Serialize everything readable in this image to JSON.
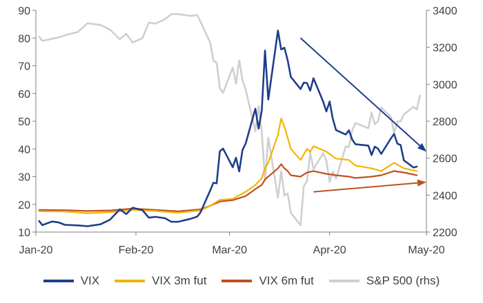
{
  "chart_data": {
    "type": "line",
    "title": "",
    "x_ticks": [
      "Jan-20",
      "Feb-20",
      "Mar-20",
      "Apr-20",
      "May-20"
    ],
    "x_range": [
      "2020-01-01",
      "2020-05-01"
    ],
    "y_left": {
      "min": 10,
      "max": 90,
      "ticks": [
        10,
        20,
        30,
        40,
        50,
        60,
        70,
        80,
        90
      ]
    },
    "y_right": {
      "label": "rhs",
      "min": 2200,
      "max": 3400,
      "ticks": [
        2200,
        2400,
        2600,
        2800,
        3000,
        3200,
        3400
      ]
    },
    "grid": false,
    "legend_position": "bottom",
    "series": [
      {
        "name": "VIX",
        "axis": "left",
        "color": "#1F3D8C",
        "points": [
          [
            "2020-01-02",
            14
          ],
          [
            "2020-01-03",
            12.5
          ],
          [
            "2020-01-06",
            13.8
          ],
          [
            "2020-01-08",
            13.5
          ],
          [
            "2020-01-10",
            12.6
          ],
          [
            "2020-01-14",
            12.4
          ],
          [
            "2020-01-17",
            12.1
          ],
          [
            "2020-01-21",
            12.8
          ],
          [
            "2020-01-24",
            14.5
          ],
          [
            "2020-01-27",
            18.2
          ],
          [
            "2020-01-29",
            16.5
          ],
          [
            "2020-01-31",
            18.8
          ],
          [
            "2020-02-03",
            17.9
          ],
          [
            "2020-02-05",
            15.2
          ],
          [
            "2020-02-07",
            15.5
          ],
          [
            "2020-02-10",
            15.0
          ],
          [
            "2020-02-12",
            13.7
          ],
          [
            "2020-02-14",
            13.7
          ],
          [
            "2020-02-18",
            14.8
          ],
          [
            "2020-02-20",
            15.6
          ],
          [
            "2020-02-21",
            17.1
          ],
          [
            "2020-02-24",
            25.0
          ],
          [
            "2020-02-25",
            27.8
          ],
          [
            "2020-02-26",
            27.6
          ],
          [
            "2020-02-27",
            39.2
          ],
          [
            "2020-02-28",
            40.1
          ],
          [
            "2020-03-02",
            33.4
          ],
          [
            "2020-03-03",
            36.8
          ],
          [
            "2020-03-04",
            31.9
          ],
          [
            "2020-03-05",
            39.6
          ],
          [
            "2020-03-06",
            41.9
          ],
          [
            "2020-03-09",
            54.5
          ],
          [
            "2020-03-10",
            47.3
          ],
          [
            "2020-03-11",
            53.9
          ],
          [
            "2020-03-12",
            75.5
          ],
          [
            "2020-03-13",
            57.8
          ],
          [
            "2020-03-16",
            82.7
          ],
          [
            "2020-03-17",
            75.9
          ],
          [
            "2020-03-18",
            76.5
          ],
          [
            "2020-03-19",
            72.0
          ],
          [
            "2020-03-20",
            66.0
          ],
          [
            "2020-03-23",
            61.6
          ],
          [
            "2020-03-24",
            63.9
          ],
          [
            "2020-03-25",
            63.8
          ],
          [
            "2020-03-26",
            61.0
          ],
          [
            "2020-03-27",
            65.5
          ],
          [
            "2020-03-30",
            57.1
          ],
          [
            "2020-03-31",
            53.5
          ],
          [
            "2020-04-01",
            57.1
          ],
          [
            "2020-04-02",
            50.9
          ],
          [
            "2020-04-03",
            46.8
          ],
          [
            "2020-04-06",
            45.2
          ],
          [
            "2020-04-07",
            46.7
          ],
          [
            "2020-04-08",
            43.4
          ],
          [
            "2020-04-09",
            41.7
          ],
          [
            "2020-04-13",
            41.2
          ],
          [
            "2020-04-14",
            37.8
          ],
          [
            "2020-04-15",
            40.8
          ],
          [
            "2020-04-16",
            40.1
          ],
          [
            "2020-04-17",
            38.2
          ],
          [
            "2020-04-20",
            43.8
          ],
          [
            "2020-04-21",
            45.4
          ],
          [
            "2020-04-22",
            41.9
          ],
          [
            "2020-04-23",
            41.4
          ],
          [
            "2020-04-24",
            35.9
          ],
          [
            "2020-04-27",
            33.3
          ],
          [
            "2020-04-28",
            33.6
          ]
        ]
      },
      {
        "name": "VIX 3m fut",
        "axis": "left",
        "color": "#F2B400",
        "points": [
          [
            "2020-01-02",
            17.5
          ],
          [
            "2020-01-10",
            17.4
          ],
          [
            "2020-01-17",
            16.8
          ],
          [
            "2020-01-24",
            17.2
          ],
          [
            "2020-01-31",
            18.0
          ],
          [
            "2020-02-07",
            17.6
          ],
          [
            "2020-02-14",
            17.0
          ],
          [
            "2020-02-21",
            17.8
          ],
          [
            "2020-02-24",
            19.5
          ],
          [
            "2020-02-27",
            21.6
          ],
          [
            "2020-03-02",
            22.0
          ],
          [
            "2020-03-06",
            24.5
          ],
          [
            "2020-03-09",
            27.0
          ],
          [
            "2020-03-11",
            29.5
          ],
          [
            "2020-03-12",
            33.0
          ],
          [
            "2020-03-13",
            35.0
          ],
          [
            "2020-03-16",
            45.0
          ],
          [
            "2020-03-17",
            51.0
          ],
          [
            "2020-03-18",
            48.0
          ],
          [
            "2020-03-19",
            44.0
          ],
          [
            "2020-03-20",
            40.0
          ],
          [
            "2020-03-23",
            36.0
          ],
          [
            "2020-03-24",
            38.0
          ],
          [
            "2020-03-25",
            40.0
          ],
          [
            "2020-03-26",
            39.0
          ],
          [
            "2020-03-27",
            41.0
          ],
          [
            "2020-03-31",
            39.0
          ],
          [
            "2020-04-03",
            36.5
          ],
          [
            "2020-04-07",
            36.0
          ],
          [
            "2020-04-09",
            34.0
          ],
          [
            "2020-04-14",
            33.0
          ],
          [
            "2020-04-17",
            32.0
          ],
          [
            "2020-04-21",
            35.0
          ],
          [
            "2020-04-24",
            33.0
          ],
          [
            "2020-04-28",
            32.0
          ]
        ]
      },
      {
        "name": "VIX 6m fut",
        "axis": "left",
        "color": "#C0501E",
        "points": [
          [
            "2020-01-02",
            18.0
          ],
          [
            "2020-01-10",
            17.9
          ],
          [
            "2020-01-17",
            17.6
          ],
          [
            "2020-01-24",
            17.8
          ],
          [
            "2020-01-31",
            18.5
          ],
          [
            "2020-02-07",
            18.0
          ],
          [
            "2020-02-14",
            17.5
          ],
          [
            "2020-02-21",
            18.2
          ],
          [
            "2020-02-24",
            19.5
          ],
          [
            "2020-02-27",
            21.0
          ],
          [
            "2020-03-02",
            21.5
          ],
          [
            "2020-03-06",
            23.0
          ],
          [
            "2020-03-09",
            25.5
          ],
          [
            "2020-03-11",
            27.0
          ],
          [
            "2020-03-12",
            29.0
          ],
          [
            "2020-03-13",
            30.0
          ],
          [
            "2020-03-16",
            33.0
          ],
          [
            "2020-03-17",
            34.5
          ],
          [
            "2020-03-18",
            33.0
          ],
          [
            "2020-03-19",
            32.0
          ],
          [
            "2020-03-20",
            30.5
          ],
          [
            "2020-03-23",
            30.0
          ],
          [
            "2020-03-25",
            31.5
          ],
          [
            "2020-03-27",
            32.0
          ],
          [
            "2020-03-31",
            31.0
          ],
          [
            "2020-04-03",
            30.5
          ],
          [
            "2020-04-07",
            30.0
          ],
          [
            "2020-04-09",
            29.5
          ],
          [
            "2020-04-14",
            30.0
          ],
          [
            "2020-04-17",
            30.5
          ],
          [
            "2020-04-21",
            32.0
          ],
          [
            "2020-04-24",
            31.5
          ],
          [
            "2020-04-28",
            30.5
          ]
        ]
      },
      {
        "name": "S&P 500 (rhs)",
        "axis": "right",
        "color": "#D0CECE",
        "points": [
          [
            "2020-01-02",
            3258
          ],
          [
            "2020-01-03",
            3235
          ],
          [
            "2020-01-06",
            3246
          ],
          [
            "2020-01-08",
            3253
          ],
          [
            "2020-01-10",
            3265
          ],
          [
            "2020-01-14",
            3283
          ],
          [
            "2020-01-17",
            3330
          ],
          [
            "2020-01-21",
            3321
          ],
          [
            "2020-01-24",
            3295
          ],
          [
            "2020-01-27",
            3244
          ],
          [
            "2020-01-29",
            3273
          ],
          [
            "2020-01-31",
            3226
          ],
          [
            "2020-02-03",
            3249
          ],
          [
            "2020-02-05",
            3334
          ],
          [
            "2020-02-07",
            3328
          ],
          [
            "2020-02-10",
            3352
          ],
          [
            "2020-02-12",
            3380
          ],
          [
            "2020-02-14",
            3380
          ],
          [
            "2020-02-18",
            3370
          ],
          [
            "2020-02-20",
            3374
          ],
          [
            "2020-02-21",
            3338
          ],
          [
            "2020-02-24",
            3226
          ],
          [
            "2020-02-25",
            3128
          ],
          [
            "2020-02-26",
            3116
          ],
          [
            "2020-02-27",
            2979
          ],
          [
            "2020-02-28",
            2954
          ],
          [
            "2020-03-02",
            3090
          ],
          [
            "2020-03-03",
            3003
          ],
          [
            "2020-03-04",
            3130
          ],
          [
            "2020-03-05",
            3023
          ],
          [
            "2020-03-06",
            2972
          ],
          [
            "2020-03-09",
            2746
          ],
          [
            "2020-03-10",
            2882
          ],
          [
            "2020-03-11",
            2741
          ],
          [
            "2020-03-12",
            2480
          ],
          [
            "2020-03-13",
            2711
          ],
          [
            "2020-03-16",
            2386
          ],
          [
            "2020-03-17",
            2529
          ],
          [
            "2020-03-18",
            2398
          ],
          [
            "2020-03-19",
            2409
          ],
          [
            "2020-03-20",
            2305
          ],
          [
            "2020-03-23",
            2237
          ],
          [
            "2020-03-24",
            2447
          ],
          [
            "2020-03-25",
            2475
          ],
          [
            "2020-03-26",
            2630
          ],
          [
            "2020-03-27",
            2541
          ],
          [
            "2020-03-30",
            2627
          ],
          [
            "2020-03-31",
            2585
          ],
          [
            "2020-04-01",
            2471
          ],
          [
            "2020-04-02",
            2527
          ],
          [
            "2020-04-03",
            2489
          ],
          [
            "2020-04-06",
            2664
          ],
          [
            "2020-04-07",
            2660
          ],
          [
            "2020-04-08",
            2750
          ],
          [
            "2020-04-09",
            2790
          ],
          [
            "2020-04-13",
            2762
          ],
          [
            "2020-04-14",
            2846
          ],
          [
            "2020-04-15",
            2784
          ],
          [
            "2020-04-16",
            2800
          ],
          [
            "2020-04-17",
            2875
          ],
          [
            "2020-04-20",
            2823
          ],
          [
            "2020-04-21",
            2737
          ],
          [
            "2020-04-22",
            2799
          ],
          [
            "2020-04-23",
            2798
          ],
          [
            "2020-04-24",
            2837
          ],
          [
            "2020-04-27",
            2878
          ],
          [
            "2020-04-28",
            2863
          ],
          [
            "2020-04-29",
            2939
          ]
        ]
      }
    ],
    "arrows": [
      {
        "color": "#1F3D8C",
        "from": [
          "2020-03-23",
          80
        ],
        "to": [
          "2020-05-01",
          39
        ]
      },
      {
        "color": "#C0501E",
        "from": [
          "2020-03-27",
          24.5
        ],
        "to": [
          "2020-05-01",
          28
        ]
      }
    ]
  }
}
